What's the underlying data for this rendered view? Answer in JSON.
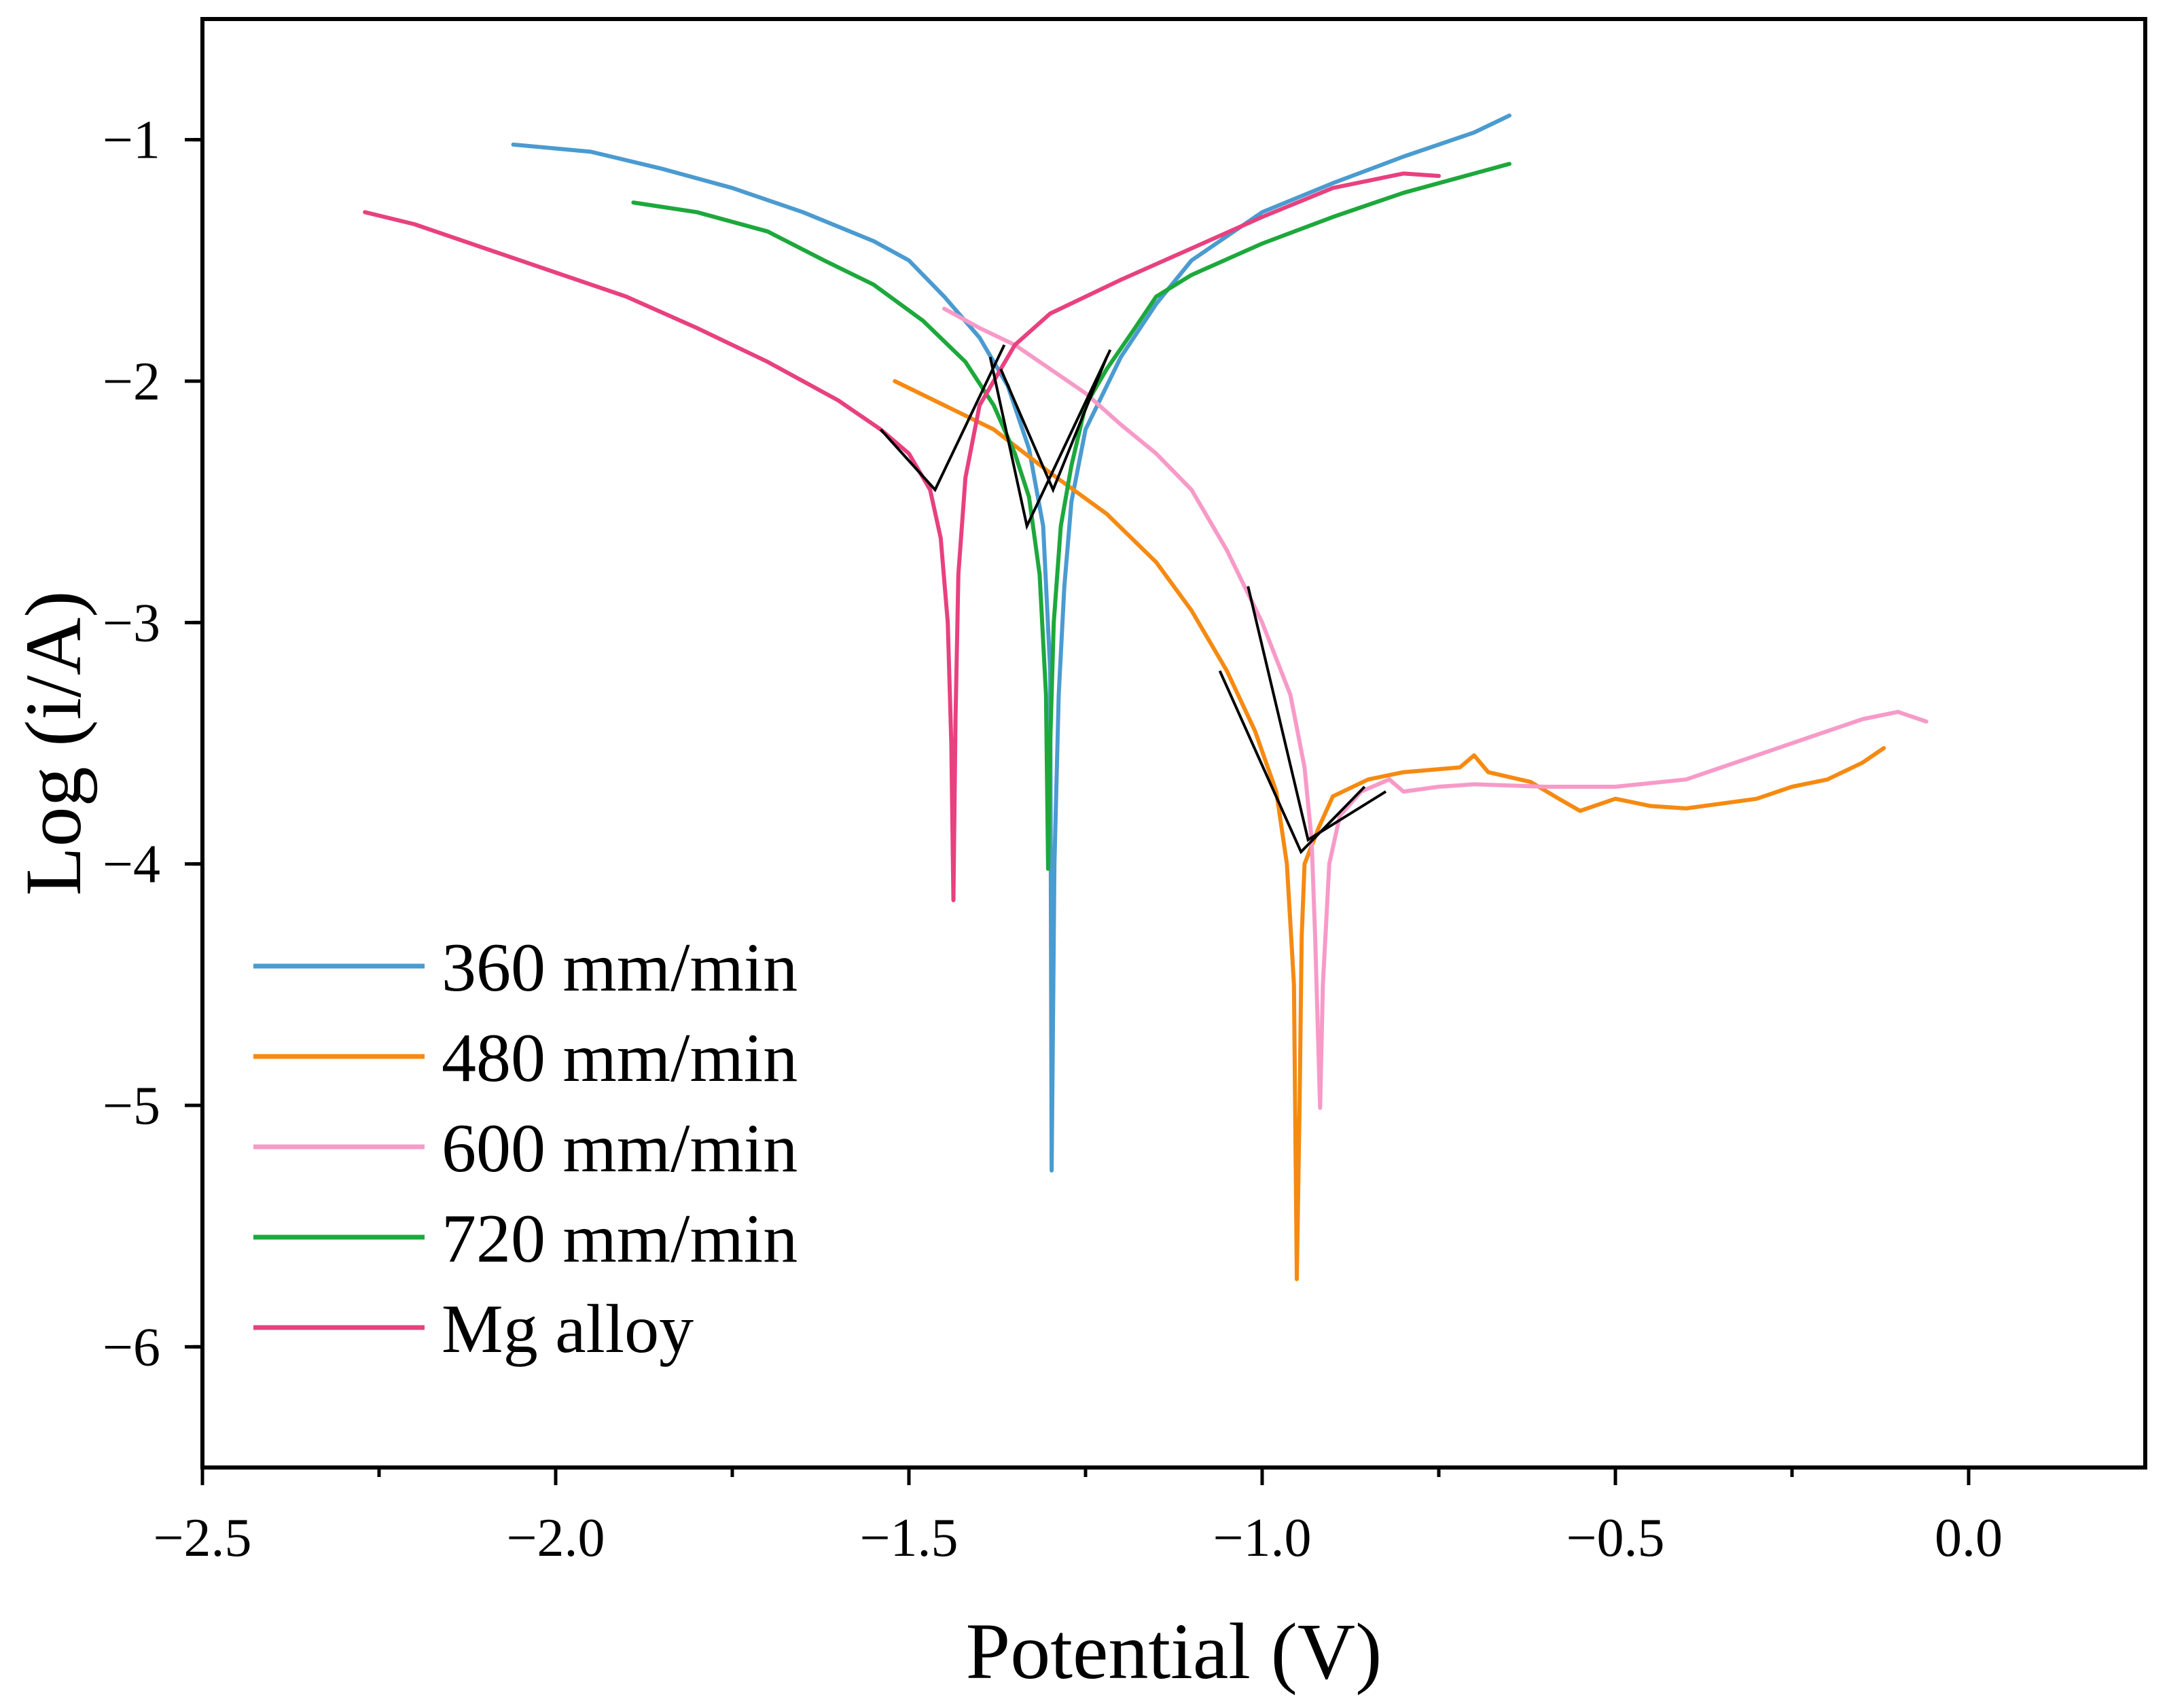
{
  "chart_data": {
    "type": "line",
    "title": "",
    "xlabel": "Potential (V)",
    "ylabel": "Log (i/A)",
    "xlim": [
      -2.5,
      0.25
    ],
    "ylim": [
      -6.5,
      -0.5
    ],
    "xticks": [
      -2.5,
      -2.0,
      -1.5,
      -1.0,
      -0.5,
      0.0
    ],
    "xtick_labels": [
      "−2.5",
      "−2.0",
      "−1.5",
      "−1.0",
      "−0.5",
      "0.0"
    ],
    "yticks": [
      -1,
      -2,
      -3,
      -4,
      -5,
      -6
    ],
    "ytick_labels": [
      "−1",
      "−2",
      "−3",
      "−4",
      "−5",
      "−6"
    ],
    "legend_position": "bottom-left",
    "series": [
      {
        "name": "360 mm/min",
        "color": "#4A9BD0",
        "points": [
          [
            -2.06,
            -1.02
          ],
          [
            -1.95,
            -1.05
          ],
          [
            -1.85,
            -1.12
          ],
          [
            -1.75,
            -1.2
          ],
          [
            -1.65,
            -1.3
          ],
          [
            -1.55,
            -1.42
          ],
          [
            -1.5,
            -1.5
          ],
          [
            -1.45,
            -1.65
          ],
          [
            -1.4,
            -1.82
          ],
          [
            -1.36,
            -2.02
          ],
          [
            -1.33,
            -2.28
          ],
          [
            -1.31,
            -2.6
          ],
          [
            -1.3,
            -3.2
          ],
          [
            -1.298,
            -5.27
          ],
          [
            -1.294,
            -4.0
          ],
          [
            -1.288,
            -3.3
          ],
          [
            -1.28,
            -2.85
          ],
          [
            -1.27,
            -2.5
          ],
          [
            -1.25,
            -2.2
          ],
          [
            -1.2,
            -1.9
          ],
          [
            -1.15,
            -1.68
          ],
          [
            -1.1,
            -1.5
          ],
          [
            -1.0,
            -1.3
          ],
          [
            -0.9,
            -1.18
          ],
          [
            -0.8,
            -1.07
          ],
          [
            -0.7,
            -0.97
          ],
          [
            -0.65,
            -0.9
          ]
        ]
      },
      {
        "name": "480 mm/min",
        "color": "#F58A12",
        "points": [
          [
            -1.52,
            -2.0
          ],
          [
            -1.45,
            -2.1
          ],
          [
            -1.38,
            -2.2
          ],
          [
            -1.3,
            -2.38
          ],
          [
            -1.22,
            -2.55
          ],
          [
            -1.15,
            -2.75
          ],
          [
            -1.1,
            -2.95
          ],
          [
            -1.05,
            -3.2
          ],
          [
            -1.01,
            -3.45
          ],
          [
            -0.98,
            -3.7
          ],
          [
            -0.965,
            -4.0
          ],
          [
            -0.955,
            -4.5
          ],
          [
            -0.951,
            -5.72
          ],
          [
            -0.947,
            -5.0
          ],
          [
            -0.944,
            -4.3
          ],
          [
            -0.94,
            -4.0
          ],
          [
            -0.92,
            -3.85
          ],
          [
            -0.9,
            -3.72
          ],
          [
            -0.85,
            -3.65
          ],
          [
            -0.8,
            -3.62
          ],
          [
            -0.72,
            -3.6
          ],
          [
            -0.7,
            -3.55
          ],
          [
            -0.68,
            -3.62
          ],
          [
            -0.62,
            -3.66
          ],
          [
            -0.58,
            -3.73
          ],
          [
            -0.55,
            -3.78
          ],
          [
            -0.5,
            -3.73
          ],
          [
            -0.45,
            -3.76
          ],
          [
            -0.4,
            -3.77
          ],
          [
            -0.35,
            -3.75
          ],
          [
            -0.3,
            -3.73
          ],
          [
            -0.25,
            -3.68
          ],
          [
            -0.2,
            -3.65
          ],
          [
            -0.15,
            -3.58
          ],
          [
            -0.12,
            -3.52
          ]
        ]
      },
      {
        "name": "600 mm/min",
        "color": "#F79AC8",
        "points": [
          [
            -1.45,
            -1.7
          ],
          [
            -1.4,
            -1.78
          ],
          [
            -1.35,
            -1.85
          ],
          [
            -1.3,
            -1.95
          ],
          [
            -1.25,
            -2.05
          ],
          [
            -1.2,
            -2.18
          ],
          [
            -1.15,
            -2.3
          ],
          [
            -1.1,
            -2.45
          ],
          [
            -1.05,
            -2.7
          ],
          [
            -1.0,
            -3.0
          ],
          [
            -0.96,
            -3.3
          ],
          [
            -0.94,
            -3.6
          ],
          [
            -0.93,
            -3.9
          ],
          [
            -0.925,
            -4.3
          ],
          [
            -0.918,
            -5.01
          ],
          [
            -0.914,
            -4.5
          ],
          [
            -0.905,
            -4.0
          ],
          [
            -0.89,
            -3.8
          ],
          [
            -0.86,
            -3.7
          ],
          [
            -0.82,
            -3.65
          ],
          [
            -0.8,
            -3.7
          ],
          [
            -0.75,
            -3.68
          ],
          [
            -0.7,
            -3.67
          ],
          [
            -0.6,
            -3.68
          ],
          [
            -0.5,
            -3.68
          ],
          [
            -0.4,
            -3.65
          ],
          [
            -0.3,
            -3.55
          ],
          [
            -0.2,
            -3.45
          ],
          [
            -0.15,
            -3.4
          ],
          [
            -0.1,
            -3.37
          ],
          [
            -0.06,
            -3.41
          ]
        ]
      },
      {
        "name": "720 mm/min",
        "color": "#1DA83C",
        "points": [
          [
            -1.89,
            -1.26
          ],
          [
            -1.8,
            -1.3
          ],
          [
            -1.7,
            -1.38
          ],
          [
            -1.62,
            -1.5
          ],
          [
            -1.55,
            -1.6
          ],
          [
            -1.48,
            -1.75
          ],
          [
            -1.42,
            -1.92
          ],
          [
            -1.38,
            -2.1
          ],
          [
            -1.35,
            -2.3
          ],
          [
            -1.33,
            -2.48
          ],
          [
            -1.315,
            -2.8
          ],
          [
            -1.306,
            -3.3
          ],
          [
            -1.303,
            -4.02
          ],
          [
            -1.3,
            -3.5
          ],
          [
            -1.295,
            -3.0
          ],
          [
            -1.285,
            -2.6
          ],
          [
            -1.27,
            -2.35
          ],
          [
            -1.25,
            -2.1
          ],
          [
            -1.22,
            -1.95
          ],
          [
            -1.18,
            -1.78
          ],
          [
            -1.15,
            -1.65
          ],
          [
            -1.1,
            -1.56
          ],
          [
            -1.0,
            -1.43
          ],
          [
            -0.9,
            -1.32
          ],
          [
            -0.8,
            -1.22
          ],
          [
            -0.7,
            -1.14
          ],
          [
            -0.65,
            -1.1
          ]
        ]
      },
      {
        "name": "Mg alloy",
        "color": "#E8417F",
        "points": [
          [
            -2.27,
            -1.3
          ],
          [
            -2.2,
            -1.35
          ],
          [
            -2.1,
            -1.45
          ],
          [
            -2.0,
            -1.55
          ],
          [
            -1.9,
            -1.65
          ],
          [
            -1.8,
            -1.78
          ],
          [
            -1.7,
            -1.92
          ],
          [
            -1.6,
            -2.08
          ],
          [
            -1.54,
            -2.2
          ],
          [
            -1.5,
            -2.3
          ],
          [
            -1.47,
            -2.45
          ],
          [
            -1.455,
            -2.65
          ],
          [
            -1.445,
            -3.0
          ],
          [
            -1.44,
            -3.5
          ],
          [
            -1.437,
            -4.15
          ],
          [
            -1.434,
            -3.4
          ],
          [
            -1.43,
            -2.8
          ],
          [
            -1.42,
            -2.4
          ],
          [
            -1.4,
            -2.1
          ],
          [
            -1.35,
            -1.85
          ],
          [
            -1.3,
            -1.72
          ],
          [
            -1.2,
            -1.58
          ],
          [
            -1.1,
            -1.45
          ],
          [
            -1.0,
            -1.32
          ],
          [
            -0.9,
            -1.2
          ],
          [
            -0.8,
            -1.14
          ],
          [
            -0.75,
            -1.15
          ]
        ]
      }
    ],
    "tafel_fit_lines": [
      {
        "color": "#000000",
        "points": [
          [
            -1.54,
            -2.2
          ],
          [
            -1.463,
            -2.45
          ],
          [
            -1.365,
            -1.85
          ]
        ]
      },
      {
        "color": "#000000",
        "points": [
          [
            -1.385,
            -1.9
          ],
          [
            -1.333,
            -2.6
          ],
          [
            -1.215,
            -1.87
          ]
        ]
      },
      {
        "color": "#000000",
        "points": [
          [
            -1.37,
            -1.95
          ],
          [
            -1.296,
            -2.45
          ],
          [
            -1.22,
            -1.9
          ]
        ]
      },
      {
        "color": "#000000",
        "points": [
          [
            -1.02,
            -2.85
          ],
          [
            -0.935,
            -3.9
          ],
          [
            -0.825,
            -3.7
          ]
        ]
      },
      {
        "color": "#000000",
        "points": [
          [
            -1.06,
            -3.2
          ],
          [
            -0.945,
            -3.95
          ],
          [
            -0.855,
            -3.68
          ]
        ]
      }
    ]
  }
}
